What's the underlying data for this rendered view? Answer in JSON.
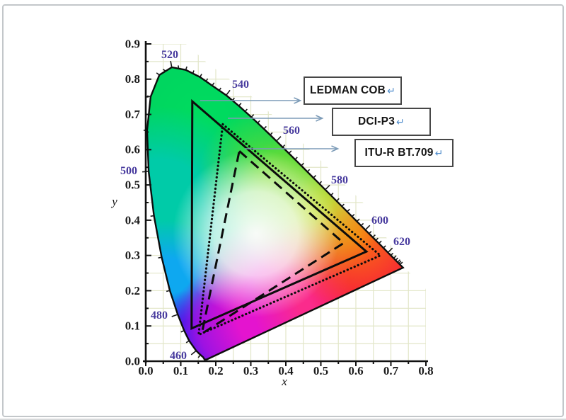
{
  "chart_data": {
    "type": "area",
    "subtype": "CIE 1931 xy chromaticity diagram with color gamut triangles",
    "title": "",
    "xlabel": "x",
    "ylabel": "y",
    "xlim": [
      0.0,
      0.8
    ],
    "ylim": [
      0.0,
      0.9
    ],
    "grid": true,
    "x_tick_labels": [
      "0.0",
      "0.1",
      "0.2",
      "0.3",
      "0.4",
      "0.5",
      "0.6",
      "0.7",
      "0.8"
    ],
    "y_tick_labels": [
      "0.0",
      "0.1",
      "0.2",
      "0.3",
      "0.4",
      "0.5",
      "0.6",
      "0.7",
      "0.8",
      "0.9"
    ],
    "wavelength_labels": [
      {
        "text": "460"
      },
      {
        "text": "480"
      },
      {
        "text": "500"
      },
      {
        "text": "520"
      },
      {
        "text": "540"
      },
      {
        "text": "560"
      },
      {
        "text": "580"
      },
      {
        "text": "600"
      },
      {
        "text": "620"
      }
    ],
    "labeled_wavelengths": [
      460,
      480,
      500,
      520,
      540,
      560,
      580,
      600,
      620
    ],
    "series": [
      {
        "name": "LEDMAN COB",
        "style": "solid",
        "color": "#0c0c0c",
        "vertices": [
          [
            0.133,
            0.737
          ],
          [
            0.63,
            0.311
          ],
          [
            0.131,
            0.093
          ]
        ]
      },
      {
        "name": "DCI-P3",
        "style": "dotted",
        "color": "#0c0c0c",
        "vertices": [
          [
            0.22,
            0.672
          ],
          [
            0.67,
            0.3
          ],
          [
            0.151,
            0.075
          ]
        ]
      },
      {
        "name": "ITU-R BT.709",
        "style": "dashed",
        "color": "#0c0c0c",
        "vertices": [
          [
            0.267,
            0.596
          ],
          [
            0.565,
            0.335
          ],
          [
            0.16,
            0.078
          ]
        ]
      }
    ],
    "spectral_locus": [
      [
        380,
        0.1741,
        0.005
      ],
      [
        410,
        0.1678,
        0.0049
      ],
      [
        440,
        0.1644,
        0.0109
      ],
      [
        450,
        0.1566,
        0.0177
      ],
      [
        460,
        0.144,
        0.0297
      ],
      [
        470,
        0.1241,
        0.0578
      ],
      [
        475,
        0.1096,
        0.0868
      ],
      [
        480,
        0.0913,
        0.1327
      ],
      [
        485,
        0.0687,
        0.2007
      ],
      [
        490,
        0.0454,
        0.295
      ],
      [
        495,
        0.0235,
        0.4127
      ],
      [
        500,
        0.0082,
        0.5384
      ],
      [
        505,
        0.0039,
        0.6548
      ],
      [
        510,
        0.0139,
        0.7502
      ],
      [
        515,
        0.0389,
        0.812
      ],
      [
        520,
        0.0743,
        0.8338
      ],
      [
        525,
        0.1142,
        0.8262
      ],
      [
        530,
        0.1547,
        0.8059
      ],
      [
        535,
        0.1896,
        0.7816
      ],
      [
        540,
        0.2296,
        0.7543
      ],
      [
        545,
        0.2658,
        0.7243
      ],
      [
        550,
        0.3016,
        0.6923
      ],
      [
        555,
        0.3373,
        0.6589
      ],
      [
        560,
        0.3731,
        0.6245
      ],
      [
        565,
        0.4087,
        0.5896
      ],
      [
        570,
        0.4441,
        0.5547
      ],
      [
        575,
        0.4788,
        0.5202
      ],
      [
        580,
        0.5125,
        0.4866
      ],
      [
        585,
        0.5448,
        0.4544
      ],
      [
        590,
        0.5752,
        0.4242
      ],
      [
        595,
        0.6029,
        0.3965
      ],
      [
        600,
        0.627,
        0.3725
      ],
      [
        605,
        0.6482,
        0.3514
      ],
      [
        610,
        0.6658,
        0.334
      ],
      [
        620,
        0.6915,
        0.3083
      ],
      [
        630,
        0.7079,
        0.292
      ],
      [
        640,
        0.719,
        0.2809
      ],
      [
        650,
        0.726,
        0.274
      ],
      [
        700,
        0.7347,
        0.2653
      ]
    ]
  },
  "callouts": [
    {
      "label": "LEDMAN COB",
      "return_mark": "↵"
    },
    {
      "label": "DCI-P3",
      "return_mark": "↵"
    },
    {
      "label": "ITU-R BT.709",
      "return_mark": "↵"
    }
  ],
  "colors": {
    "wavelength_label": "#473a9e",
    "arrow": "#7d9cb8",
    "axis": "#111111",
    "grid": "#e2e6c8",
    "callout_border": "#474747"
  }
}
